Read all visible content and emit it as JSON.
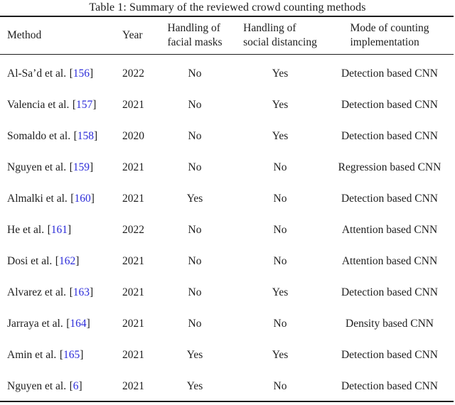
{
  "caption": "Table 1: Summary of the reviewed crowd counting methods",
  "colors": {
    "citation_link_blue": "#2b2bd9",
    "text_ink": "#1e1e1e"
  },
  "table": {
    "citation_brackets": [
      "[",
      "]"
    ],
    "columns": {
      "method": "Method",
      "year": "Year",
      "masks": "Handling of\nfacial masks",
      "distancing": "Handling of\nsocial distancing",
      "mode": "Mode of counting\nimplementation"
    },
    "rows": [
      {
        "method": "Al-Sa’d et al.",
        "cite": "156",
        "year": "2022",
        "masks": "No",
        "distancing": "Yes",
        "mode": "Detection based CNN"
      },
      {
        "method": "Valencia et al.",
        "cite": "157",
        "year": "2021",
        "masks": "No",
        "distancing": "Yes",
        "mode": "Detection based CNN"
      },
      {
        "method": "Somaldo et al.",
        "cite": "158",
        "year": "2020",
        "masks": "No",
        "distancing": "Yes",
        "mode": "Detection based CNN"
      },
      {
        "method": "Nguyen et al.",
        "cite": "159",
        "year": "2021",
        "masks": "No",
        "distancing": "No",
        "mode": "Regression based CNN"
      },
      {
        "method": "Almalki et al.",
        "cite": "160",
        "year": "2021",
        "masks": "Yes",
        "distancing": "No",
        "mode": "Detection based CNN"
      },
      {
        "method": "He et al.",
        "cite": "161",
        "year": "2022",
        "masks": "No",
        "distancing": "No",
        "mode": "Attention based CNN"
      },
      {
        "method": "Dosi et al.",
        "cite": "162",
        "year": "2021",
        "masks": "No",
        "distancing": "No",
        "mode": "Attention based CNN"
      },
      {
        "method": "Alvarez et al.",
        "cite": "163",
        "year": "2021",
        "masks": "No",
        "distancing": "Yes",
        "mode": "Detection based CNN"
      },
      {
        "method": "Jarraya et al.",
        "cite": "164",
        "year": "2021",
        "masks": "No",
        "distancing": "No",
        "mode": "Density based CNN"
      },
      {
        "method": "Amin et al.",
        "cite": "165",
        "year": "2021",
        "masks": "Yes",
        "distancing": "Yes",
        "mode": "Detection based CNN"
      },
      {
        "method": "Nguyen et al.",
        "cite": "6",
        "year": "2021",
        "masks": "Yes",
        "distancing": "No",
        "mode": "Detection based CNN"
      }
    ]
  }
}
